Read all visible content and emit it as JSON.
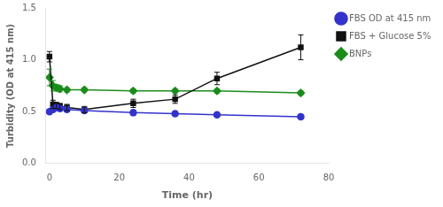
{
  "chart_data": {
    "type": "line",
    "xlabel": "Time (hr)",
    "ylabel": "Turbidity (OD at 415 nm)",
    "x": [
      0,
      1,
      2,
      3,
      5,
      10,
      24,
      36,
      48,
      72
    ],
    "series": [
      {
        "name": "FBS OD at 415 nm",
        "color": "#3333cc",
        "marker": "circle",
        "values": [
          0.5,
          0.52,
          0.54,
          0.53,
          0.52,
          0.51,
          0.49,
          0.48,
          0.47,
          0.45
        ],
        "yerr": [
          0.02,
          0.02,
          0.02,
          0.02,
          0.02,
          0.02,
          0.02,
          0.02,
          0.02,
          0.02
        ]
      },
      {
        "name": "FBS + Glucose 5%",
        "color": "#111111",
        "marker": "square",
        "values": [
          1.03,
          0.57,
          0.56,
          0.55,
          0.54,
          0.52,
          0.58,
          0.62,
          0.82,
          1.12
        ],
        "yerr": [
          0.05,
          0.04,
          0.03,
          0.03,
          0.03,
          0.03,
          0.04,
          0.04,
          0.06,
          0.12
        ]
      },
      {
        "name": "BNPs",
        "color": "#1a8c1a",
        "marker": "diamond",
        "values": [
          0.83,
          0.75,
          0.73,
          0.72,
          0.71,
          0.71,
          0.7,
          0.7,
          0.7,
          0.68
        ],
        "yerr": [
          0.08,
          0.05,
          0.03,
          0.03,
          0.02,
          0.02,
          0.02,
          0.02,
          0.02,
          0.02
        ]
      }
    ],
    "xlim": [
      -1,
      80
    ],
    "xticks": [
      0,
      20,
      40,
      60,
      80
    ],
    "ylim": [
      0.0,
      1.5
    ],
    "yticks": [
      {
        "value": 0,
        "label": "0.0"
      },
      0.5,
      {
        "value": 1,
        "label": "1.0"
      },
      1.5
    ],
    "grid": false,
    "legend": "right"
  }
}
